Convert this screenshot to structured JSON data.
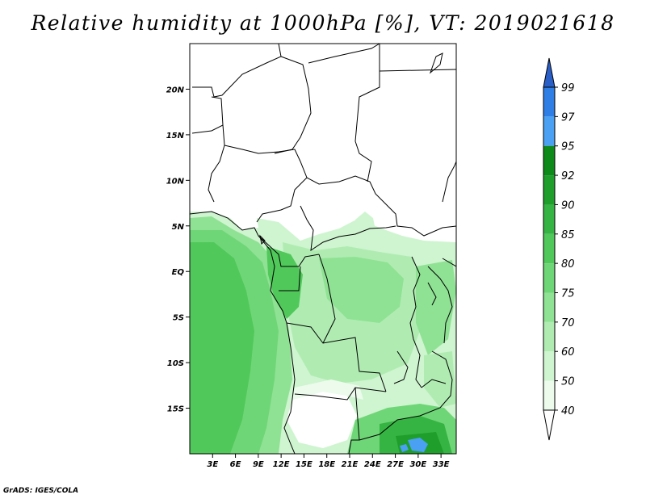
{
  "title": "Relative humidity at 1000hPa [%], VT: 2019021618",
  "credit": "GrADS: IGES/COLA",
  "map": {
    "lon_range": [
      0,
      35
    ],
    "lat_range": [
      -20,
      25
    ],
    "lon_ticks": [
      "3E",
      "6E",
      "9E",
      "12E",
      "15E",
      "18E",
      "21E",
      "24E",
      "27E",
      "30E",
      "33E"
    ],
    "lat_ticks": [
      "20N",
      "15N",
      "10N",
      "5N",
      "EQ",
      "5S",
      "10S",
      "15S"
    ]
  },
  "colorbar": {
    "levels": [
      "99",
      "97",
      "95",
      "92",
      "90",
      "85",
      "80",
      "75",
      "70",
      "60",
      "50",
      "40"
    ],
    "colors": [
      "#2a5fc8",
      "#2f7ee6",
      "#4aa0f2",
      "#0e8a1a",
      "#1f9e2c",
      "#36b443",
      "#50c85a",
      "#6fd677",
      "#8fe294",
      "#b0ecb2",
      "#cff5d0",
      "#ecfbec",
      "#ffffff"
    ]
  }
}
